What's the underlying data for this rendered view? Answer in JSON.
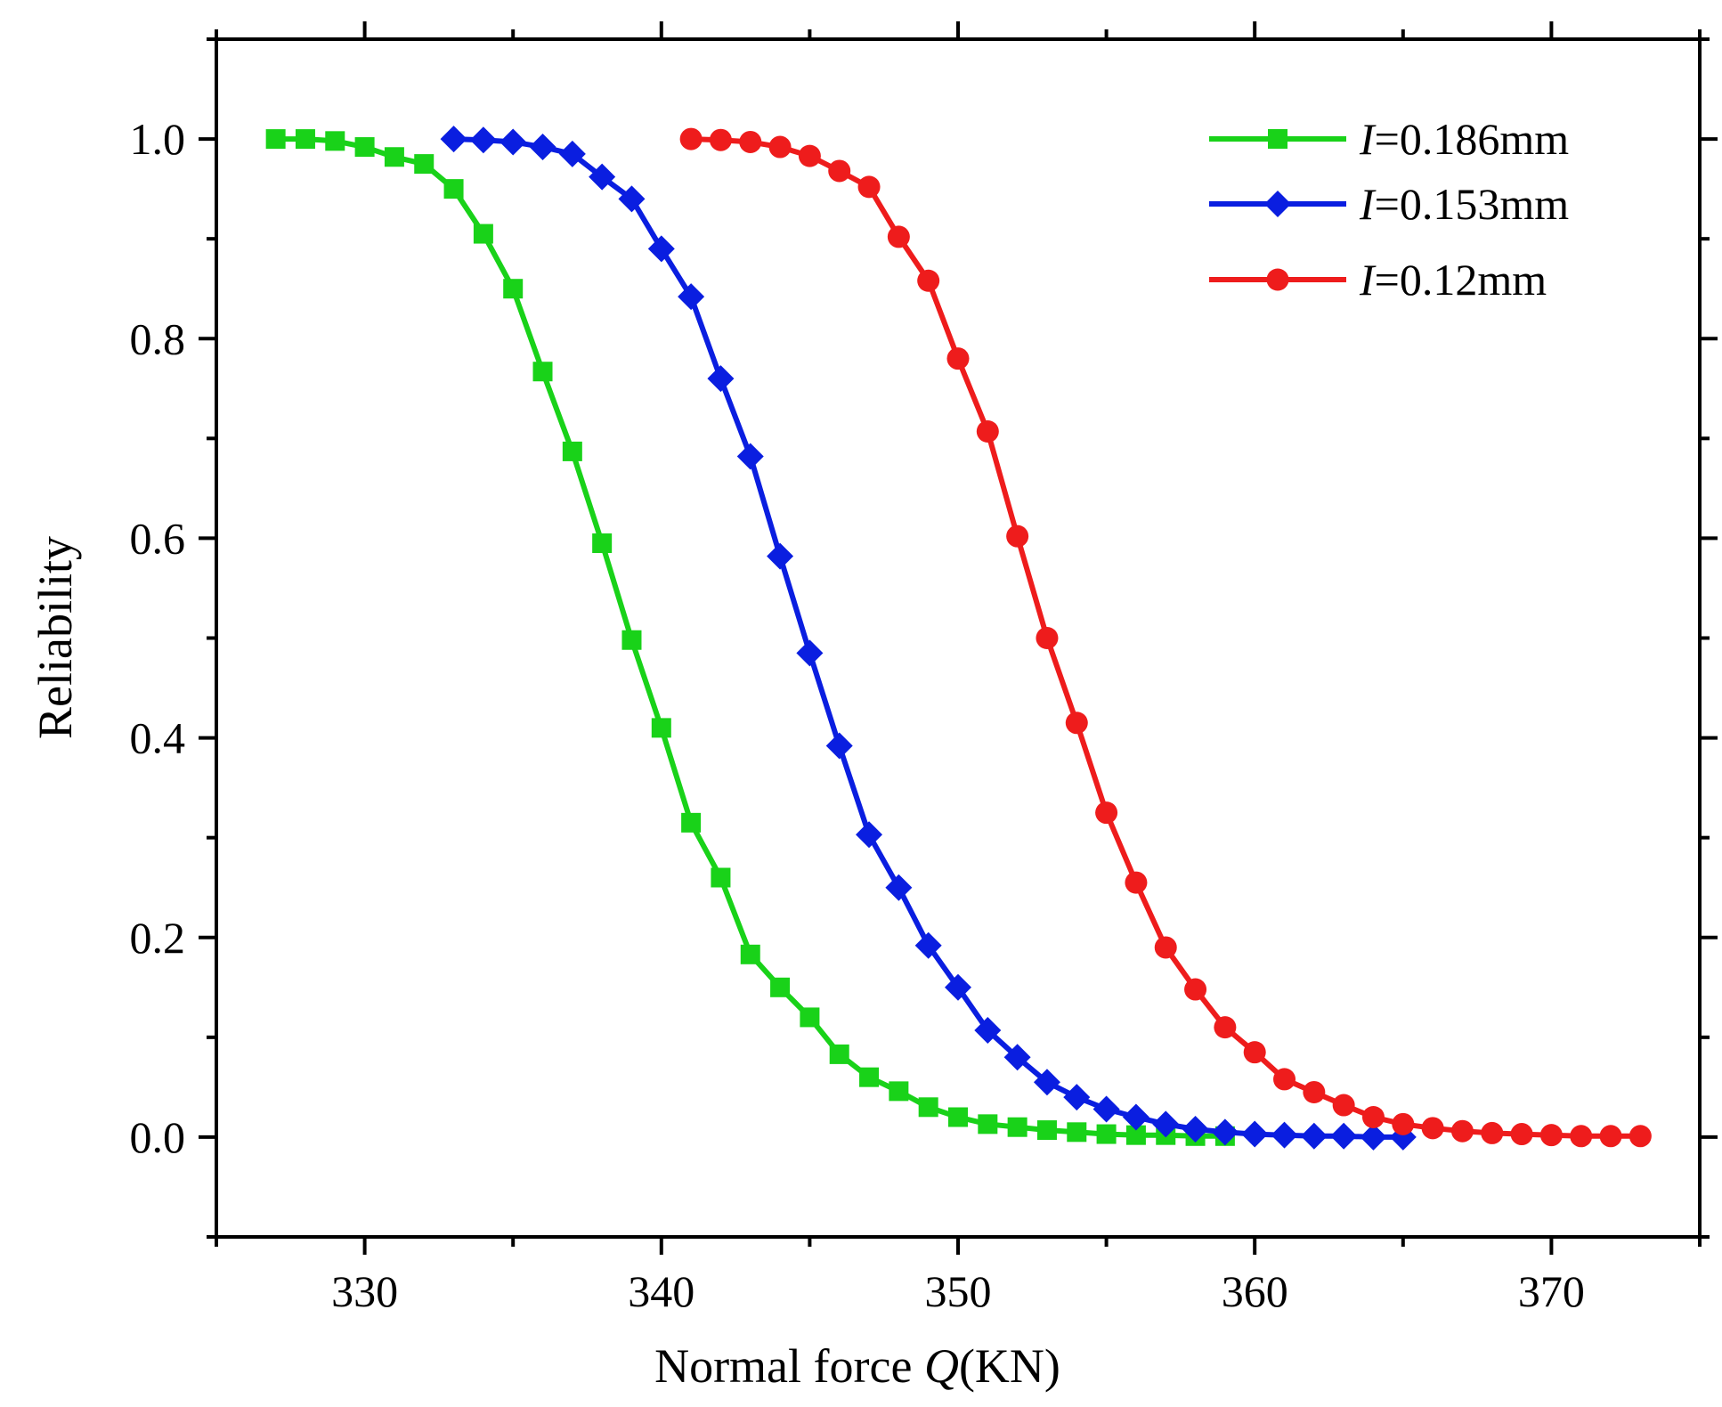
{
  "chart_data": {
    "type": "line",
    "title": "",
    "xlabel_prefix": "Normal force ",
    "xlabel_var": "Q",
    "xlabel_unit": "(KN)",
    "ylabel": "Reliability",
    "xlim": [
      325,
      375
    ],
    "ylim": [
      -0.1,
      1.1
    ],
    "xticks": [
      330,
      340,
      350,
      360,
      370
    ],
    "xtick_labels": [
      "330",
      "340",
      "350",
      "360",
      "370"
    ],
    "yticks": [
      0.0,
      0.2,
      0.4,
      0.6,
      0.8,
      1.0
    ],
    "ytick_labels": [
      "0.0",
      "0.2",
      "0.4",
      "0.6",
      "0.8",
      "1.0"
    ],
    "legend_position": "top-right",
    "series": [
      {
        "name": "I=0.186mm",
        "legend_var": "I",
        "legend_value": "=0.186mm",
        "color": "#19d219",
        "marker": "square",
        "x": [
          327,
          328,
          329,
          330,
          331,
          332,
          333,
          334,
          335,
          336,
          337,
          338,
          339,
          340,
          341,
          342,
          343,
          344,
          345,
          346,
          347,
          348,
          349,
          350,
          351,
          352,
          353,
          354,
          355,
          356,
          357,
          358,
          359
        ],
        "y": [
          1.0,
          1.0,
          0.998,
          0.992,
          0.982,
          0.975,
          0.95,
          0.905,
          0.85,
          0.767,
          0.687,
          0.595,
          0.498,
          0.41,
          0.315,
          0.26,
          0.183,
          0.15,
          0.12,
          0.083,
          0.06,
          0.046,
          0.03,
          0.02,
          0.013,
          0.01,
          0.007,
          0.005,
          0.003,
          0.002,
          0.002,
          0.001,
          0.001
        ]
      },
      {
        "name": "I=0.153mm",
        "legend_var": "I",
        "legend_value": "=0.153mm",
        "color": "#0a1ee0",
        "marker": "diamond",
        "x": [
          333,
          334,
          335,
          336,
          337,
          338,
          339,
          340,
          341,
          342,
          343,
          344,
          345,
          346,
          347,
          348,
          349,
          350,
          351,
          352,
          353,
          354,
          355,
          356,
          357,
          358,
          359,
          360,
          361,
          362,
          363,
          364,
          365
        ],
        "y": [
          1.0,
          0.999,
          0.997,
          0.992,
          0.985,
          0.962,
          0.94,
          0.89,
          0.842,
          0.76,
          0.682,
          0.582,
          0.485,
          0.392,
          0.303,
          0.25,
          0.192,
          0.15,
          0.107,
          0.08,
          0.055,
          0.04,
          0.028,
          0.02,
          0.013,
          0.008,
          0.005,
          0.003,
          0.002,
          0.001,
          0.001,
          0.0,
          0.0
        ]
      },
      {
        "name": "I=0.12mm",
        "legend_var": "I",
        "legend_value": "=0.12mm",
        "color": "#ee1c1c",
        "marker": "circle",
        "x": [
          341,
          342,
          343,
          344,
          345,
          346,
          347,
          348,
          349,
          350,
          351,
          352,
          353,
          354,
          355,
          356,
          357,
          358,
          359,
          360,
          361,
          362,
          363,
          364,
          365,
          366,
          367,
          368,
          369,
          370,
          371,
          372,
          373
        ],
        "y": [
          1.0,
          0.999,
          0.997,
          0.992,
          0.983,
          0.968,
          0.952,
          0.902,
          0.858,
          0.78,
          0.707,
          0.602,
          0.5,
          0.415,
          0.325,
          0.255,
          0.19,
          0.148,
          0.11,
          0.085,
          0.058,
          0.045,
          0.032,
          0.02,
          0.013,
          0.009,
          0.006,
          0.004,
          0.003,
          0.002,
          0.001,
          0.001,
          0.001
        ]
      }
    ]
  }
}
